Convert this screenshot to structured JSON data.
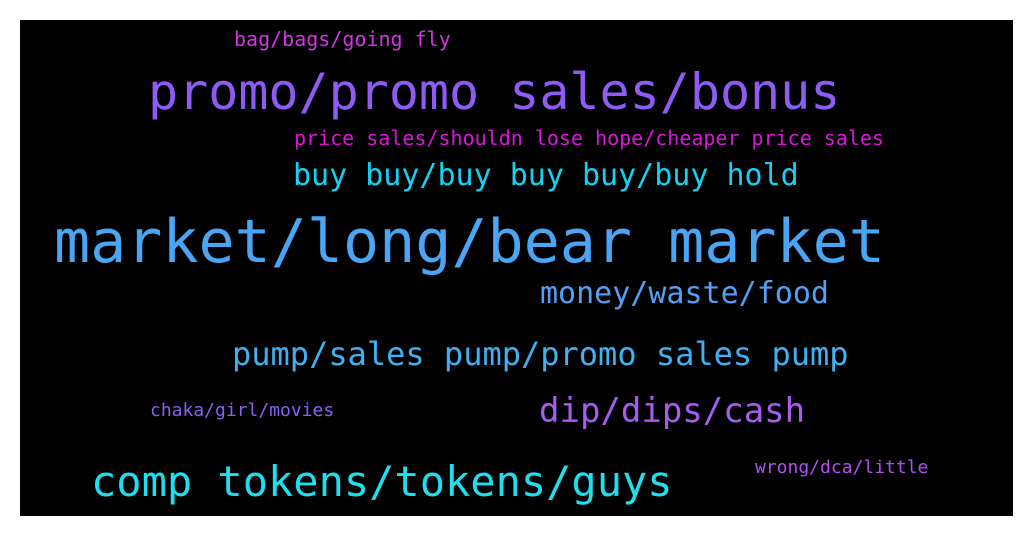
{
  "words": [
    {
      "text": "bag/bags/going fly",
      "color": "#d633e6"
    },
    {
      "text": "promo/promo sales/bonus",
      "color": "#8e5cf5"
    },
    {
      "text": "price sales/shouldn lose hope/cheaper price sales",
      "color": "#de14de"
    },
    {
      "text": "buy buy/buy buy buy/buy hold",
      "color": "#11d3f3"
    },
    {
      "text": "market/long/bear market",
      "color": "#4aa6f5"
    },
    {
      "text": "money/waste/food",
      "color": "#54a0f7"
    },
    {
      "text": "pump/sales pump/promo sales pump",
      "color": "#3fb2f4"
    },
    {
      "text": "chaka/girl/movies",
      "color": "#8b60f5"
    },
    {
      "text": "dip/dips/cash",
      "color": "#a85cf0"
    },
    {
      "text": "comp tokens/tokens/guys",
      "color": "#1fdfee"
    },
    {
      "text": "wrong/dca/little",
      "color": "#b24ef2"
    }
  ]
}
